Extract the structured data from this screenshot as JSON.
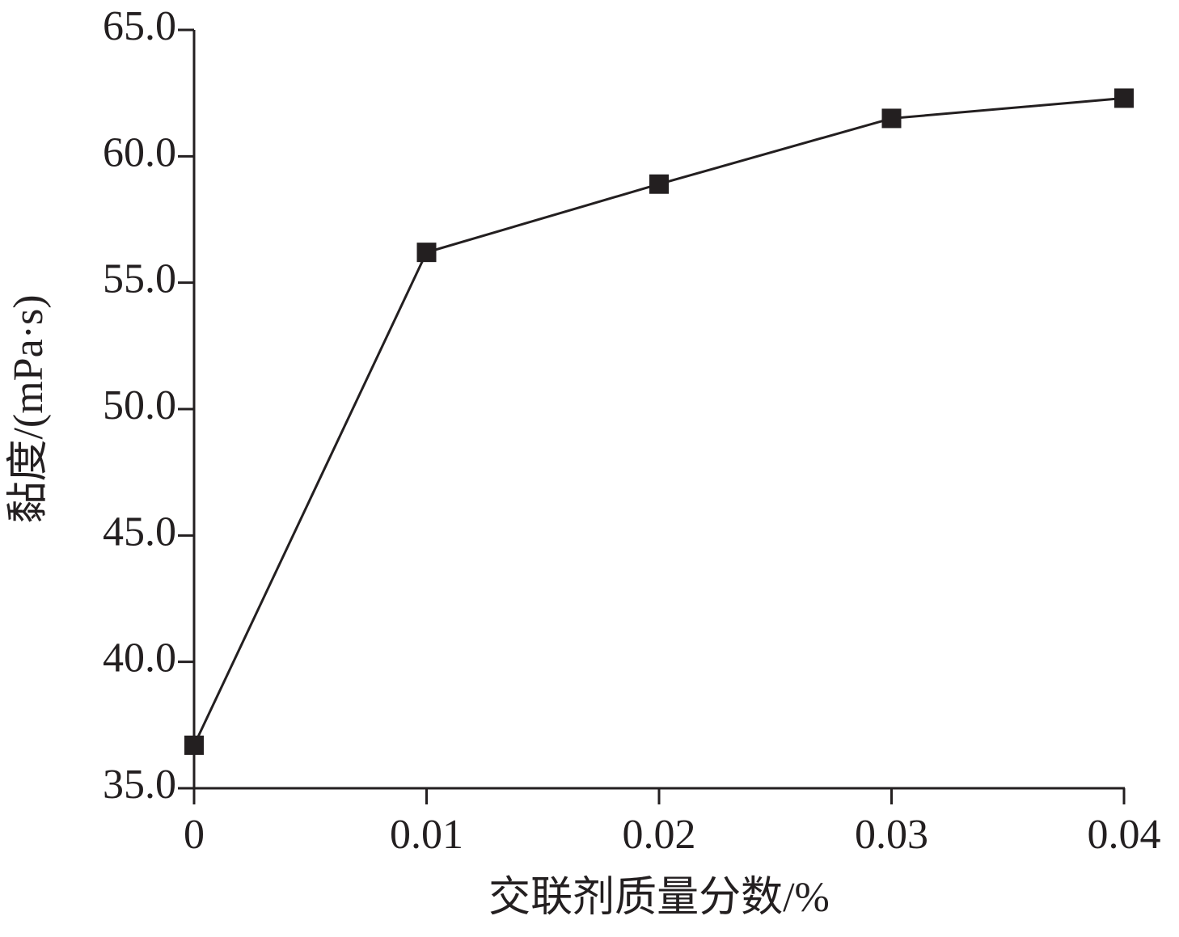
{
  "chart_data": {
    "type": "line",
    "x_label": "交联剂质量分数/%",
    "y_label": "黏度/(mPa·s)",
    "x": [
      0,
      0.01,
      0.02,
      0.03,
      0.04
    ],
    "series": [
      {
        "values": [
          36.7,
          56.2,
          58.9,
          61.5,
          62.3
        ],
        "color": "#231f20"
      }
    ],
    "xlim": [
      0,
      0.04
    ],
    "xticks": [
      0,
      0.01,
      0.02,
      0.03,
      0.04
    ],
    "ylim": [
      35,
      65
    ],
    "yticks": [
      {
        "value": 35,
        "label": "35.0"
      },
      {
        "value": 40,
        "label": "40.0"
      },
      {
        "value": 45,
        "label": "45.0"
      },
      {
        "value": 50,
        "label": "50.0"
      },
      {
        "value": 55,
        "label": "55.0"
      },
      {
        "value": 60,
        "label": "60.0"
      },
      {
        "value": 65,
        "label": "65.0"
      }
    ]
  }
}
